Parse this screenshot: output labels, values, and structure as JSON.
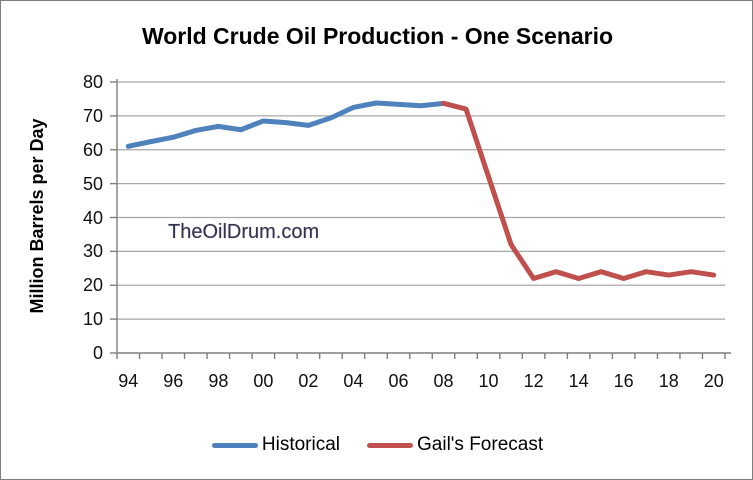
{
  "title": "World Crude Oil Production - One Scenario",
  "watermark": "TheOilDrum.com",
  "chart_data": {
    "type": "line",
    "title": "World Crude Oil Production - One Scenario",
    "xlabel": "",
    "ylabel": "Million Barrels per Day",
    "ylim": [
      0,
      80
    ],
    "ytick_step": 10,
    "ytick_labels": [
      "0",
      "10",
      "20",
      "30",
      "40",
      "50",
      "60",
      "70",
      "80"
    ],
    "x_start_year": 1994,
    "x_end_year": 2020,
    "xtick_labels": [
      "94",
      "96",
      "98",
      "00",
      "02",
      "04",
      "06",
      "08",
      "10",
      "12",
      "14",
      "16",
      "18",
      "20"
    ],
    "grid": "horizontal",
    "legend_position": "bottom",
    "axis_color": "#7f7f7f",
    "grid_color": "#a8a8a8",
    "line_width": 5,
    "series": [
      {
        "name": "Historical",
        "color": "#4F81BD",
        "start_index": 0,
        "years": [
          1994,
          1995,
          1996,
          1997,
          1998,
          1999,
          2000,
          2001,
          2002,
          2003,
          2004,
          2005,
          2006,
          2007,
          2008
        ],
        "values": [
          61,
          62.4,
          63.7,
          65.7,
          66.9,
          65.9,
          68.5,
          68,
          67.2,
          69.4,
          72.5,
          73.8,
          73.4,
          73,
          73.7
        ]
      },
      {
        "name": "Gail's Forecast",
        "color": "#C0504D",
        "start_index": 14,
        "years": [
          2008,
          2009,
          2010,
          2011,
          2012,
          2013,
          2014,
          2015,
          2016,
          2017,
          2018,
          2019,
          2020
        ],
        "values": [
          73.7,
          72,
          52,
          32,
          22,
          24,
          22,
          24,
          22,
          24,
          23,
          24,
          23
        ]
      }
    ]
  }
}
